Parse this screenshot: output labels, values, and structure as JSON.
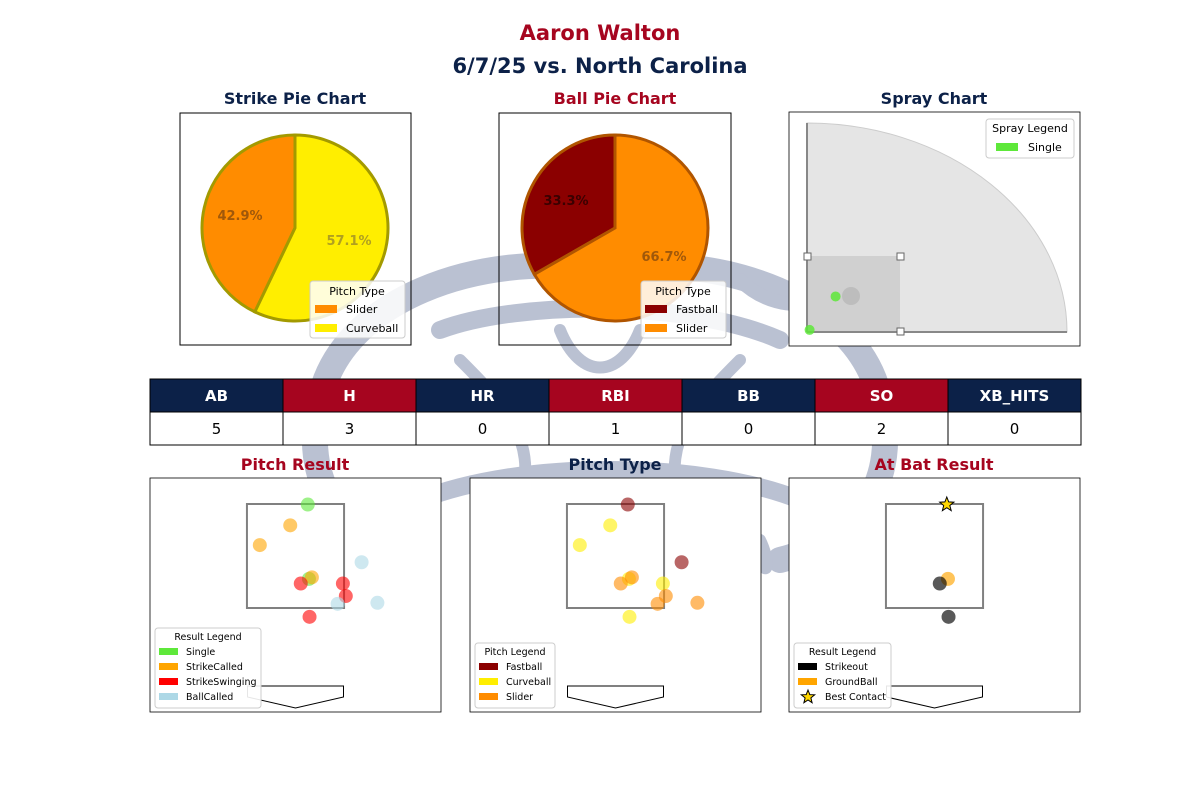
{
  "header": {
    "player": "Aaron Walton",
    "game": "6/7/25 vs. North Carolina"
  },
  "colors": {
    "navy": "#0c2148",
    "red": "#a6051f",
    "slider": "#ff8c00",
    "curveball": "#ffee00",
    "fastball": "#8b0000",
    "single": "#5ee83a",
    "strike_called": "#ffa500",
    "strike_swinging": "#ff0000",
    "ball_called": "#add8e6",
    "strikeout": "#000000",
    "groundball": "#ffa500"
  },
  "stats_table": {
    "headers": [
      "AB",
      "H",
      "HR",
      "RBI",
      "BB",
      "SO",
      "XB_HITS"
    ],
    "values": [
      "5",
      "3",
      "0",
      "1",
      "0",
      "2",
      "0"
    ]
  },
  "chart_data": [
    {
      "type": "pie",
      "title": "Strike Pie Chart",
      "labels": [
        "Slider",
        "Curveball"
      ],
      "values": [
        42.9,
        57.1
      ],
      "value_labels": [
        "42.9%",
        "57.1%"
      ],
      "colors": [
        "#ff8c00",
        "#ffee00"
      ],
      "edge_color": "#a39a00",
      "legend_title": "Pitch Type",
      "legend": "lower-right"
    },
    {
      "type": "pie",
      "title": "Ball Pie Chart",
      "labels": [
        "Fastball",
        "Slider"
      ],
      "values": [
        33.3,
        66.7
      ],
      "value_labels": [
        "33.3%",
        "66.7%"
      ],
      "colors": [
        "#8b0000",
        "#ff8c00"
      ],
      "edge_color": "#b05500",
      "legend_title": "Pitch Type",
      "legend": "lower-right"
    },
    {
      "type": "scatter",
      "title": "Spray Chart",
      "legend_title": "Spray Legend",
      "legend_entries": [
        {
          "label": "Single",
          "color": "#5ee83a"
        }
      ],
      "legend": "top-right",
      "points": [
        {
          "x": 0.11,
          "y": 0.17,
          "result": "Single"
        },
        {
          "x": 0.01,
          "y": 0.01,
          "result": "Single"
        }
      ]
    },
    {
      "type": "scatter",
      "title": "Pitch Result",
      "legend_title": "Result Legend",
      "legend_entries": [
        {
          "label": "Single",
          "color": "#5ee83a"
        },
        {
          "label": "StrikeCalled",
          "color": "#ffa500"
        },
        {
          "label": "StrikeSwinging",
          "color": "#ff0000"
        },
        {
          "label": "BallCalled",
          "color": "#add8e6"
        }
      ],
      "legend": "lower-left",
      "points": [
        {
          "x": 0.21,
          "y": 3.49,
          "result": "Single"
        },
        {
          "x": 0.23,
          "y": 2.06,
          "result": "Single"
        },
        {
          "x": -0.09,
          "y": 3.09,
          "result": "StrikeCalled"
        },
        {
          "x": -0.61,
          "y": 2.71,
          "result": "StrikeCalled"
        },
        {
          "x": 0.28,
          "y": 2.09,
          "result": "StrikeCalled"
        },
        {
          "x": 0.09,
          "y": 1.97,
          "result": "StrikeSwinging"
        },
        {
          "x": 0.81,
          "y": 1.97,
          "result": "StrikeSwinging"
        },
        {
          "x": 0.86,
          "y": 1.73,
          "result": "StrikeSwinging"
        },
        {
          "x": 0.24,
          "y": 1.33,
          "result": "StrikeSwinging"
        },
        {
          "x": 1.13,
          "y": 2.38,
          "result": "BallCalled"
        },
        {
          "x": 0.72,
          "y": 1.58,
          "result": "BallCalled"
        },
        {
          "x": 1.4,
          "y": 1.6,
          "result": "BallCalled"
        }
      ]
    },
    {
      "type": "scatter",
      "title": "Pitch Type",
      "legend_title": "Pitch Legend",
      "legend_entries": [
        {
          "label": "Fastball",
          "color": "#8b0000"
        },
        {
          "label": "Curveball",
          "color": "#ffee00"
        },
        {
          "label": "Slider",
          "color": "#ff8c00"
        }
      ],
      "legend": "lower-left",
      "points": [
        {
          "x": 0.21,
          "y": 3.49,
          "pitch": "Fastball"
        },
        {
          "x": 1.13,
          "y": 2.38,
          "pitch": "Fastball"
        },
        {
          "x": -0.09,
          "y": 3.09,
          "pitch": "Curveball"
        },
        {
          "x": -0.61,
          "y": 2.71,
          "pitch": "Curveball"
        },
        {
          "x": 0.23,
          "y": 2.06,
          "pitch": "Curveball"
        },
        {
          "x": 0.81,
          "y": 1.97,
          "pitch": "Curveball"
        },
        {
          "x": 0.24,
          "y": 1.33,
          "pitch": "Curveball"
        },
        {
          "x": 0.28,
          "y": 2.09,
          "pitch": "Slider"
        },
        {
          "x": 0.09,
          "y": 1.97,
          "pitch": "Slider"
        },
        {
          "x": 0.86,
          "y": 1.73,
          "pitch": "Slider"
        },
        {
          "x": 0.72,
          "y": 1.58,
          "pitch": "Slider"
        },
        {
          "x": 1.4,
          "y": 1.6,
          "pitch": "Slider"
        }
      ]
    },
    {
      "type": "scatter",
      "title": "At Bat Result",
      "legend_title": "Result Legend",
      "legend_entries": [
        {
          "label": "Strikeout",
          "color": "#000000",
          "marker": "square"
        },
        {
          "label": "GroundBall",
          "color": "#ffa500",
          "marker": "square"
        },
        {
          "label": "Best Contact",
          "color": "#ffd700",
          "marker": "star"
        }
      ],
      "legend": "lower-left",
      "points": [
        {
          "x": 0.21,
          "y": 3.49,
          "result": "GroundBall",
          "best": true
        },
        {
          "x": 0.23,
          "y": 2.06,
          "result": "GroundBall"
        },
        {
          "x": 0.09,
          "y": 1.97,
          "result": "Strikeout"
        },
        {
          "x": 0.24,
          "y": 1.33,
          "result": "Strikeout"
        }
      ]
    }
  ]
}
